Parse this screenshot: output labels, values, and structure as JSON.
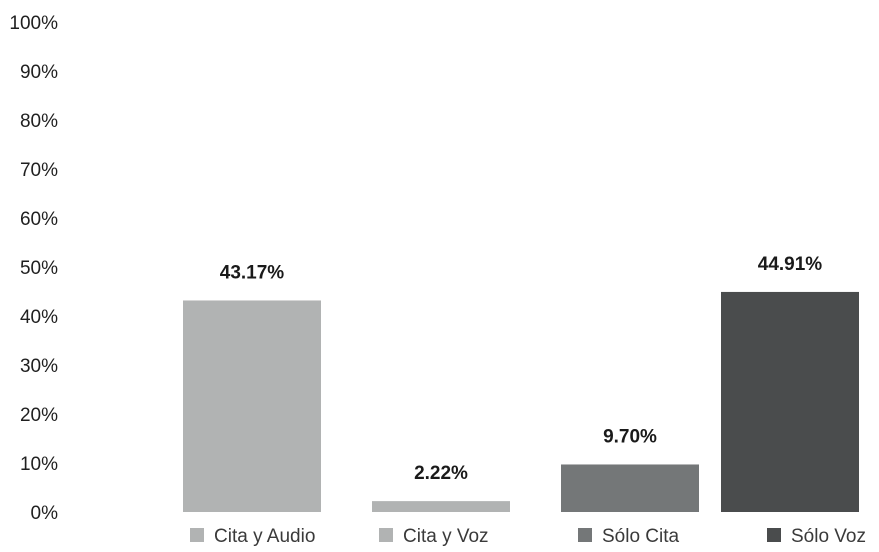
{
  "chart_data": {
    "type": "bar",
    "categories": [
      "Cita y Audio",
      "Cita y Voz",
      "Sólo Cita",
      "Sólo Voz"
    ],
    "values": [
      43.17,
      2.22,
      9.7,
      44.91
    ],
    "value_labels": [
      "43.17%",
      "2.22%",
      "9.70%",
      "44.91%"
    ],
    "colors": [
      "#b1b3b3",
      "#b1b3b3",
      "#747778",
      "#4a4c4d"
    ],
    "y_ticks": [
      "0%",
      "10%",
      "20%",
      "30%",
      "40%",
      "50%",
      "60%",
      "70%",
      "80%",
      "90%",
      "100%"
    ],
    "ylim": [
      0,
      100
    ],
    "grid": false,
    "legend_position": "bottom",
    "title": "",
    "xlabel": "",
    "ylabel": ""
  }
}
